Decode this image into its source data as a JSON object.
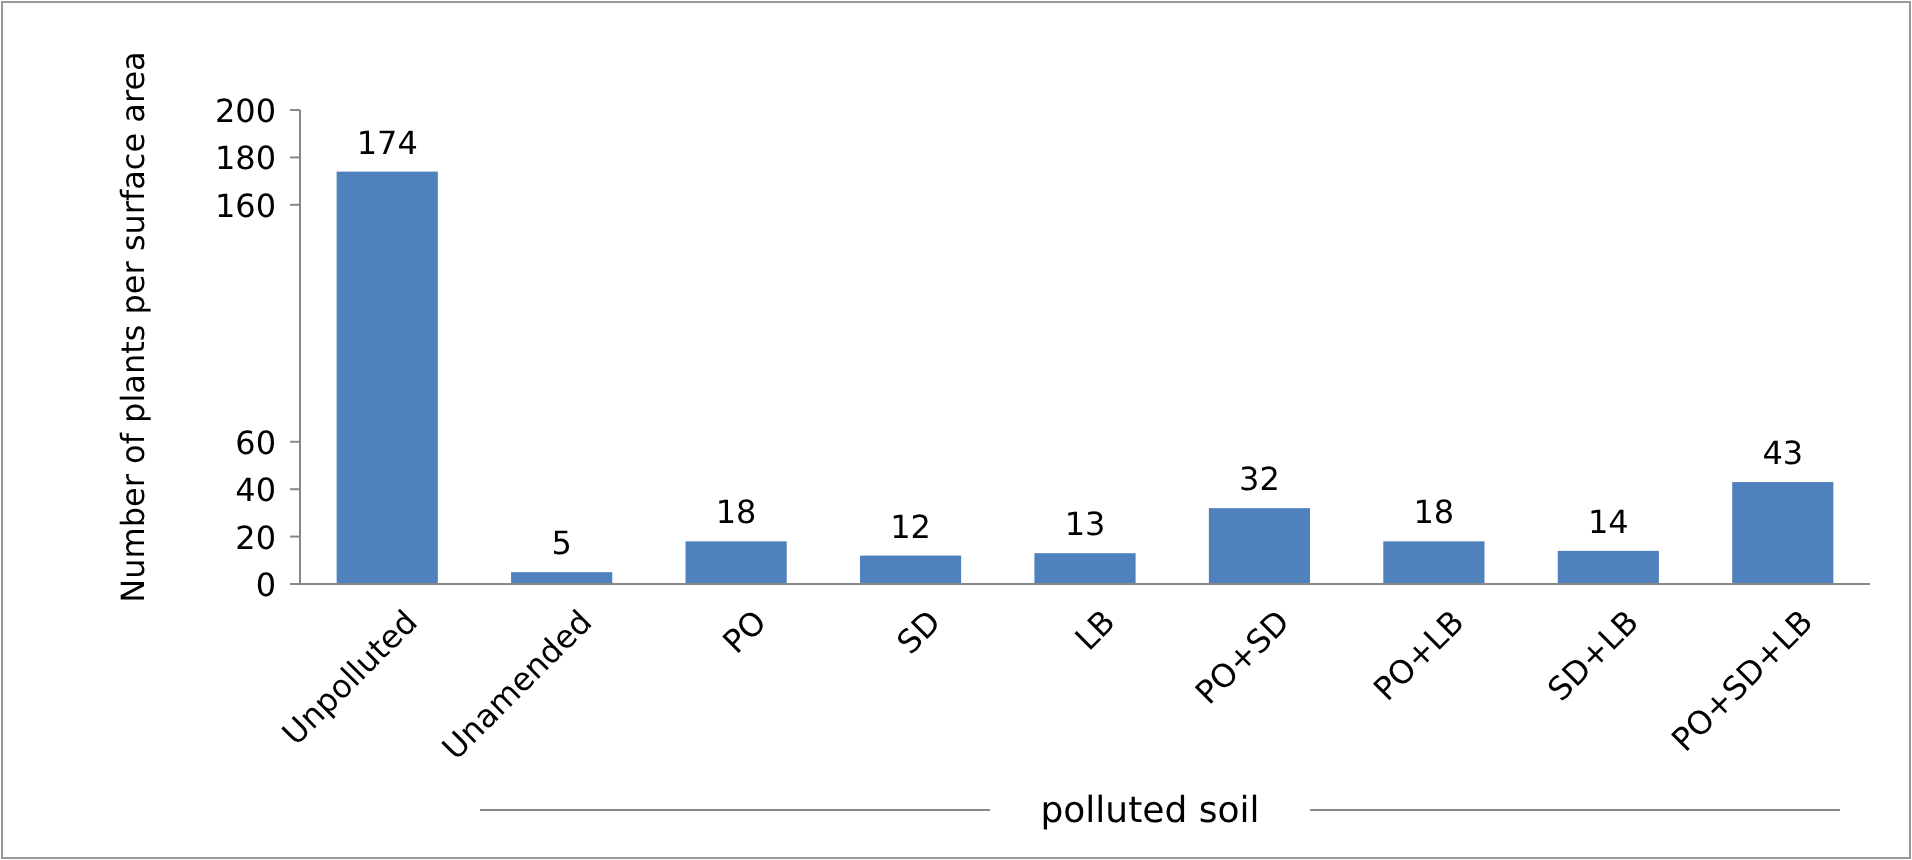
{
  "chart_data": {
    "type": "bar",
    "ylabel": "Number of plants per surface area",
    "categories": [
      "Unpolluted",
      "Unamended",
      "PO",
      "SD",
      "LB",
      "PO+SD",
      "PO+LB",
      "SD+LB",
      "PO+SD+LB"
    ],
    "values": [
      174,
      5,
      18,
      12,
      13,
      32,
      18,
      14,
      43
    ],
    "color": "#4f81bd",
    "ylim": [
      0,
      200
    ],
    "yticks": [
      0,
      20,
      40,
      60,
      160,
      180,
      200
    ],
    "data_labels": true,
    "grid": false,
    "annotations": [
      "polluted soil"
    ]
  }
}
